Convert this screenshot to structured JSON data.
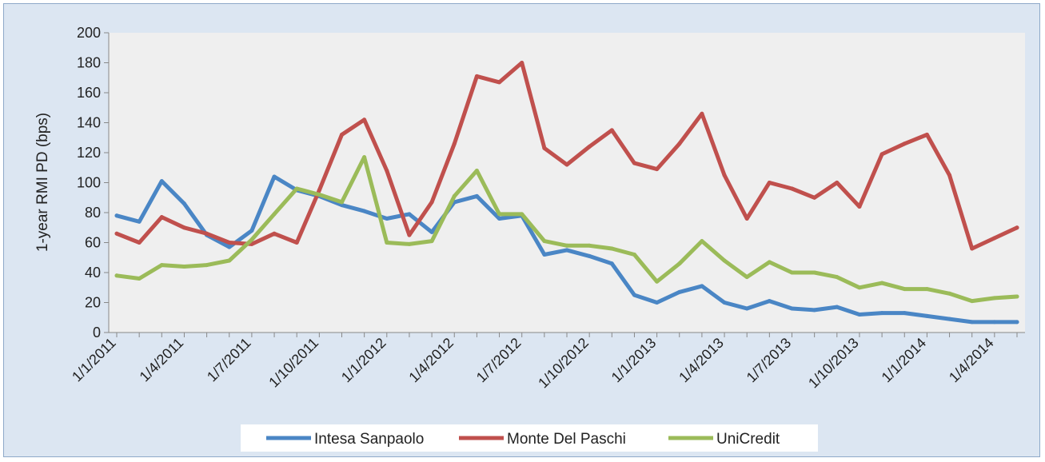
{
  "chart_data": {
    "type": "line",
    "title": "",
    "xlabel": "",
    "ylabel": "1-year RMI PD (bps)",
    "ylim": [
      0,
      200
    ],
    "yticks": [
      0,
      20,
      40,
      60,
      80,
      100,
      120,
      140,
      160,
      180,
      200
    ],
    "grid": false,
    "legend_position": "bottom",
    "x_tick_labels": [
      "1/1/2011",
      "1/4/2011",
      "1/7/2011",
      "1/10/2011",
      "1/1/2012",
      "1/4/2012",
      "1/7/2012",
      "1/10/2012",
      "1/1/2013",
      "1/4/2013",
      "1/7/2013",
      "1/10/2013",
      "1/1/2014",
      "1/4/2014"
    ],
    "x": [
      "1/1/2011",
      "1/2/2011",
      "1/3/2011",
      "1/4/2011",
      "1/5/2011",
      "1/6/2011",
      "1/7/2011",
      "1/8/2011",
      "1/9/2011",
      "1/10/2011",
      "1/11/2011",
      "1/12/2011",
      "1/1/2012",
      "1/2/2012",
      "1/3/2012",
      "1/4/2012",
      "1/5/2012",
      "1/6/2012",
      "1/7/2012",
      "1/8/2012",
      "1/9/2012",
      "1/10/2012",
      "1/11/2012",
      "1/12/2012",
      "1/1/2013",
      "1/2/2013",
      "1/3/2013",
      "1/4/2013",
      "1/5/2013",
      "1/6/2013",
      "1/7/2013",
      "1/8/2013",
      "1/9/2013",
      "1/10/2013",
      "1/11/2013",
      "1/12/2013",
      "1/1/2014",
      "1/2/2014",
      "1/3/2014",
      "1/4/2014",
      "1/5/2014"
    ],
    "series": [
      {
        "name": "Intesa Sanpaolo",
        "color": "#4a86c5",
        "values": [
          78,
          74,
          101,
          86,
          65,
          57,
          68,
          104,
          95,
          91,
          85,
          81,
          76,
          79,
          67,
          87,
          91,
          76,
          78,
          52,
          55,
          51,
          46,
          25,
          20,
          27,
          31,
          20,
          16,
          21,
          16,
          15,
          17,
          12,
          13,
          13,
          11,
          9,
          7,
          7,
          7
        ]
      },
      {
        "name": "Monte Del Paschi",
        "color": "#c0504d",
        "values": [
          66,
          60,
          77,
          70,
          66,
          60,
          59,
          66,
          60,
          95,
          132,
          142,
          108,
          65,
          87,
          126,
          171,
          167,
          180,
          123,
          112,
          124,
          135,
          113,
          109,
          126,
          146,
          105,
          76,
          100,
          96,
          90,
          100,
          84,
          119,
          126,
          132,
          105,
          56,
          63,
          70
        ]
      },
      {
        "name": "UniCredit",
        "color": "#9bbb59",
        "values": [
          38,
          36,
          45,
          44,
          45,
          48,
          62,
          79,
          96,
          92,
          87,
          117,
          60,
          59,
          61,
          91,
          108,
          79,
          79,
          61,
          58,
          58,
          56,
          52,
          34,
          46,
          61,
          48,
          37,
          47,
          40,
          40,
          37,
          30,
          33,
          29,
          29,
          26,
          21,
          23,
          24
        ]
      }
    ]
  }
}
